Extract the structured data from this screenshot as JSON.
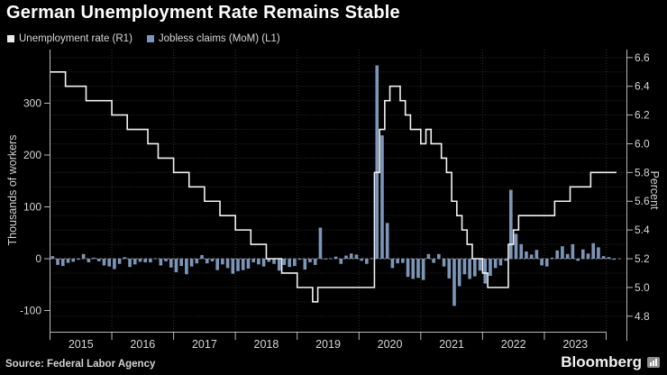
{
  "header": {
    "title": "German Unemployment Rate Remains Stable"
  },
  "legend": {
    "items": [
      {
        "label": "Unemployment rate (R1)",
        "color": "#ebebeb"
      },
      {
        "label": "Jobless claims (MoM) (L1)",
        "color": "#7d96b8"
      }
    ]
  },
  "footer": {
    "source": "Source: Federal Labor Agency",
    "brand": "Bloomberg"
  },
  "colors": {
    "background": "#000000",
    "line": "#f2f2f2",
    "bars": "#7d96b8",
    "grid": "#2e2e2e",
    "zero_line": "#8a8a8a",
    "axis": "#b8b8b8",
    "tick_text": "#d6d6d6"
  },
  "chart_data": {
    "type": "combo",
    "title": "German Unemployment Rate Remains Stable",
    "start_month": "2015-01",
    "months_per_year": 12,
    "x_year_labels": [
      "2015",
      "2016",
      "2017",
      "2018",
      "2019",
      "2020",
      "2021",
      "2022",
      "2023"
    ],
    "left_axis": {
      "title": "Thousands of workers",
      "tick_labels": [
        "300",
        "200",
        "100",
        "0",
        "-100"
      ],
      "ticks": [
        300,
        200,
        100,
        0,
        -100
      ],
      "range": [
        -141,
        403
      ]
    },
    "right_axis": {
      "title": "Percent",
      "tick_labels": [
        "6.6",
        "6.4",
        "6.2",
        "6.0",
        "5.8",
        "5.6",
        "5.4",
        "5.2",
        "5.0",
        "4.8"
      ],
      "ticks": [
        6.6,
        6.4,
        6.2,
        6.0,
        5.8,
        5.6,
        5.4,
        5.2,
        5.0,
        4.8
      ],
      "grid_step": 0.1,
      "range": [
        4.69,
        6.66
      ]
    },
    "grid": {
      "horizontal": "every 0.1 of right axis",
      "vertical": "year boundaries",
      "style": "dotted"
    },
    "legend_position": "top-left",
    "series": [
      {
        "name": "Jobless claims (MoM) (L1)",
        "type": "bar",
        "axis": "left",
        "unit": "thousands of workers",
        "values": [
          5,
          -12,
          -14,
          -8,
          -6,
          -2,
          9,
          -7,
          2,
          -5,
          -13,
          -15,
          -20,
          -10,
          3,
          -16,
          -11,
          -6,
          -7,
          -7,
          1,
          -13,
          -5,
          -17,
          -26,
          -14,
          -30,
          -15,
          -9,
          7,
          -9,
          -5,
          -22,
          -11,
          -18,
          -29,
          -24,
          -22,
          -19,
          -7,
          -11,
          -15,
          -6,
          -10,
          -23,
          -12,
          -16,
          -14,
          -2,
          -21,
          -7,
          -12,
          60,
          -1,
          1,
          4,
          -10,
          6,
          10,
          8,
          -4,
          -10,
          1,
          373,
          238,
          69,
          -18,
          -9,
          -8,
          -35,
          -39,
          -37,
          -41,
          9,
          -8,
          9,
          -15,
          -38,
          -91,
          -53,
          -30,
          -39,
          -34,
          -23,
          -48,
          -33,
          -18,
          -13,
          -4,
          133,
          48,
          28,
          14,
          8,
          17,
          -13,
          -15,
          2,
          16,
          24,
          9,
          28,
          -4,
          18,
          10,
          30,
          22,
          5,
          3,
          -2
        ]
      },
      {
        "name": "Unemployment rate (R1)",
        "type": "step-line",
        "axis": "right",
        "unit": "percent",
        "values": [
          6.5,
          6.5,
          6.5,
          6.4,
          6.4,
          6.4,
          6.4,
          6.3,
          6.3,
          6.3,
          6.3,
          6.3,
          6.2,
          6.2,
          6.2,
          6.1,
          6.1,
          6.1,
          6.1,
          6.0,
          6.0,
          5.9,
          5.9,
          5.9,
          5.8,
          5.8,
          5.8,
          5.7,
          5.7,
          5.7,
          5.6,
          5.6,
          5.6,
          5.5,
          5.5,
          5.5,
          5.4,
          5.4,
          5.4,
          5.3,
          5.3,
          5.3,
          5.2,
          5.2,
          5.2,
          5.1,
          5.1,
          5.1,
          5.0,
          5.0,
          5.0,
          4.9,
          5.0,
          5.0,
          5.0,
          5.0,
          5.0,
          5.0,
          5.0,
          5.0,
          5.0,
          5.0,
          5.0,
          5.8,
          6.1,
          6.3,
          6.4,
          6.4,
          6.3,
          6.2,
          6.1,
          6.1,
          6.0,
          6.1,
          6.0,
          6.0,
          5.9,
          5.8,
          5.6,
          5.5,
          5.4,
          5.3,
          5.2,
          5.2,
          5.1,
          5.0,
          5.0,
          5.0,
          5.0,
          5.3,
          5.4,
          5.5,
          5.5,
          5.5,
          5.5,
          5.5,
          5.5,
          5.5,
          5.6,
          5.6,
          5.6,
          5.7,
          5.7,
          5.7,
          5.7,
          5.8,
          5.8,
          5.8,
          5.8,
          5.8
        ]
      }
    ]
  }
}
